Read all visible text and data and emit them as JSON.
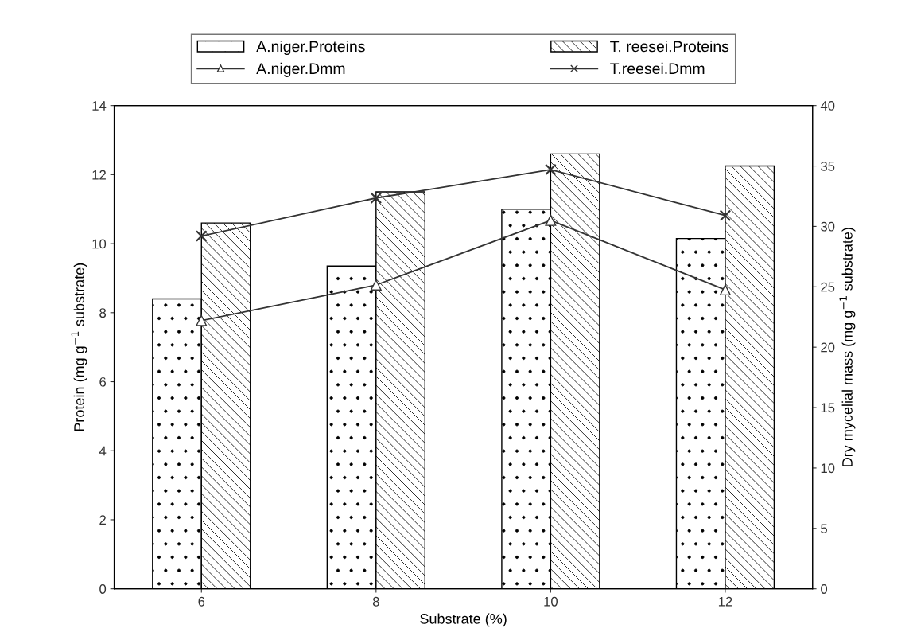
{
  "chart_data": {
    "type": "bar",
    "xlabel": "Substrate (%)",
    "ylabel": "Protein (mg g$^{−1}$ substrate)",
    "y2label": "Dry mycelial mass (mg g$^{−1}$ substrate)",
    "categories": [
      "6",
      "8",
      "10",
      "12"
    ],
    "series": [
      {
        "name": "A.niger.Proteins",
        "color": "#000000",
        "values": [
          8.4,
          9.35,
          11.0,
          10.15
        ]
      },
      {
        "name": "T. reesei.Proteins",
        "color": "#000000",
        "values": [
          10.6,
          11.5,
          12.6,
          12.25
        ]
      },
      {
        "name": "A.niger.Dmm",
        "type": "line",
        "axis": "y2",
        "marker": "triangle",
        "color": "#333333",
        "values": [
          22.2,
          25.15,
          30.5,
          24.75
        ]
      },
      {
        "name": "T.reesei.Dmm",
        "type": "line",
        "axis": "y2",
        "marker": "cross",
        "color": "#333333",
        "values": [
          29.2,
          32.35,
          34.7,
          30.9
        ]
      }
    ],
    "ylim": [
      0,
      14
    ],
    "yticks": [
      0,
      2,
      4,
      6,
      8,
      10,
      12,
      14
    ],
    "y2lim": [
      0,
      40
    ],
    "y2ticks": [
      0,
      5,
      10,
      15,
      20,
      25,
      30,
      35,
      40
    ],
    "legend": "top",
    "grid": false
  }
}
